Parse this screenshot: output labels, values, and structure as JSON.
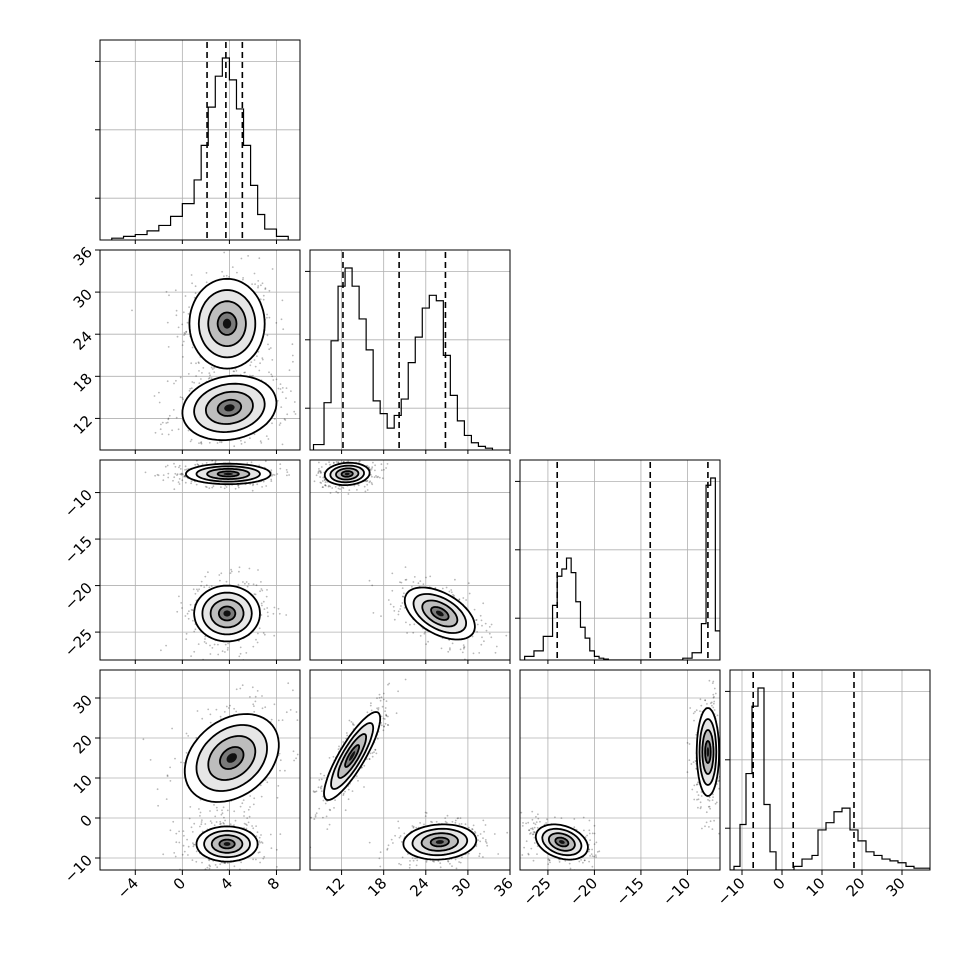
{
  "chart_data": {
    "type": "corner",
    "parameters": [
      {
        "range": [
          -7,
          10
        ],
        "ticks": [
          -4,
          0,
          4,
          8
        ],
        "tick_labels": [
          "−4",
          "0",
          "4",
          "8"
        ]
      },
      {
        "range": [
          7.5,
          36
        ],
        "ticks": [
          12,
          18,
          24,
          30,
          36
        ],
        "tick_labels": [
          "12",
          "18",
          "24",
          "30",
          "36"
        ]
      },
      {
        "range": [
          -28,
          -6.5
        ],
        "ticks": [
          -25,
          -20,
          -15,
          -10
        ],
        "tick_labels": [
          "−25",
          "−20",
          "−15",
          "−10"
        ]
      },
      {
        "range": [
          -13,
          37
        ],
        "ticks": [
          -10,
          0,
          10,
          20,
          30
        ],
        "tick_labels": [
          "−10",
          "0",
          "10",
          "20",
          "30"
        ]
      }
    ],
    "histograms": [
      {
        "param": 0,
        "bin_edges": [
          -6,
          -5,
          -4,
          -3,
          -2,
          -1,
          0,
          1,
          1.6,
          2.2,
          2.8,
          3.4,
          4.0,
          4.6,
          5.2,
          5.8,
          6.4,
          7.0,
          8,
          9
        ],
        "counts": [
          0.01,
          0.02,
          0.03,
          0.05,
          0.08,
          0.13,
          0.2,
          0.33,
          0.52,
          0.73,
          0.9,
          1.0,
          0.88,
          0.72,
          0.52,
          0.3,
          0.14,
          0.06,
          0.02
        ],
        "quantiles": [
          2.1,
          3.7,
          5.1
        ]
      },
      {
        "param": 1,
        "bin_edges": [
          8,
          9.5,
          10.5,
          11.5,
          12.5,
          13.5,
          14.5,
          15.5,
          16.5,
          17.5,
          18.5,
          19.5,
          20.5,
          21.5,
          22.5,
          23.5,
          24.5,
          25.5,
          26.5,
          27.5,
          28.5,
          29.5,
          30.5,
          31.5,
          32.5,
          33.5
        ],
        "counts": [
          0.03,
          0.26,
          0.6,
          0.9,
          1.0,
          0.9,
          0.72,
          0.55,
          0.27,
          0.2,
          0.12,
          0.19,
          0.28,
          0.48,
          0.62,
          0.78,
          0.85,
          0.82,
          0.52,
          0.3,
          0.16,
          0.08,
          0.04,
          0.02,
          0.01
        ],
        "quantiles": [
          12.2,
          20.2,
          26.8
        ]
      },
      {
        "param": 2,
        "bin_edges": [
          -27.5,
          -26.5,
          -25.5,
          -24.5,
          -24,
          -23.5,
          -23,
          -22.5,
          -22,
          -21.5,
          -21,
          -20.5,
          -20,
          -19.5,
          -19,
          -18.5,
          -10.5,
          -9.5,
          -8.5,
          -8,
          -7.5,
          -7,
          -6.5
        ],
        "counts": [
          0.02,
          0.05,
          0.13,
          0.3,
          0.46,
          0.5,
          0.56,
          0.48,
          0.32,
          0.18,
          0.12,
          0.05,
          0.02,
          0.01,
          0.005,
          0.0,
          0.01,
          0.04,
          0.2,
          0.96,
          1.0,
          0.16
        ],
        "quantiles": [
          -24.0,
          -14.0,
          -7.8
        ]
      },
      {
        "param": 3,
        "bin_edges": [
          -13,
          -12,
          -10.5,
          -9,
          -7.5,
          -6,
          -4.5,
          -3,
          -1.5,
          3,
          5,
          7.5,
          9,
          11,
          13,
          15,
          17,
          19,
          21,
          23,
          25,
          27,
          29,
          31,
          33,
          35,
          37
        ],
        "counts": [
          0.0,
          0.02,
          0.25,
          0.53,
          0.9,
          1.0,
          0.36,
          0.1,
          0.0,
          0.02,
          0.06,
          0.08,
          0.22,
          0.26,
          0.32,
          0.34,
          0.22,
          0.16,
          0.1,
          0.08,
          0.06,
          0.05,
          0.04,
          0.02,
          0.01,
          0.01
        ],
        "quantiles": [
          -7.2,
          2.8,
          18.0
        ]
      }
    ],
    "scatter_clusters": [
      {
        "x": 0,
        "y": 1,
        "modes": [
          {
            "center": [
              3.8,
              25.5
            ],
            "sigma": [
              1.6,
              3.2
            ],
            "rho": 0.0
          },
          {
            "center": [
              4.0,
              13.5
            ],
            "sigma": [
              2.0,
              2.3
            ],
            "rho": 0.15
          }
        ]
      },
      {
        "x": 0,
        "y": 2,
        "modes": [
          {
            "center": [
              3.9,
              -8.0
            ],
            "sigma": [
              1.8,
              0.55
            ],
            "rho": 0.0
          },
          {
            "center": [
              3.8,
              -23.0
            ],
            "sigma": [
              1.4,
              1.5
            ],
            "rho": 0.0
          }
        ]
      },
      {
        "x": 1,
        "y": 2,
        "modes": [
          {
            "center": [
              12.8,
              -8.0
            ],
            "sigma": [
              1.6,
              0.6
            ],
            "rho": 0.1
          },
          {
            "center": [
              26.0,
              -23.0
            ],
            "sigma": [
              2.5,
              1.4
            ],
            "rho": -0.5
          }
        ]
      },
      {
        "x": 0,
        "y": 3,
        "modes": [
          {
            "center": [
              4.2,
              15.0
            ],
            "sigma": [
              2.0,
              5.5
            ],
            "rho": 0.3
          },
          {
            "center": [
              3.8,
              -6.5
            ],
            "sigma": [
              1.3,
              2.2
            ],
            "rho": 0.0
          }
        ]
      },
      {
        "x": 1,
        "y": 3,
        "modes": [
          {
            "center": [
              13.5,
              15.5
            ],
            "sigma": [
              2.0,
              5.5
            ],
            "rho": 0.85
          },
          {
            "center": [
              26.0,
              -6.0
            ],
            "sigma": [
              2.6,
              2.2
            ],
            "rho": 0.1
          }
        ]
      },
      {
        "x": 2,
        "y": 3,
        "modes": [
          {
            "center": [
              -7.8,
              16.5
            ],
            "sigma": [
              0.6,
              5.5
            ],
            "rho": 0.0
          },
          {
            "center": [
              -23.5,
              -6.0
            ],
            "sigma": [
              1.4,
              2.2
            ],
            "rho": -0.3
          }
        ]
      }
    ],
    "contour_levels_sigma": [
      0.5,
      1.0,
      1.5,
      2.0
    ],
    "grid": true,
    "title": "",
    "xlabel": "",
    "ylabel": ""
  }
}
